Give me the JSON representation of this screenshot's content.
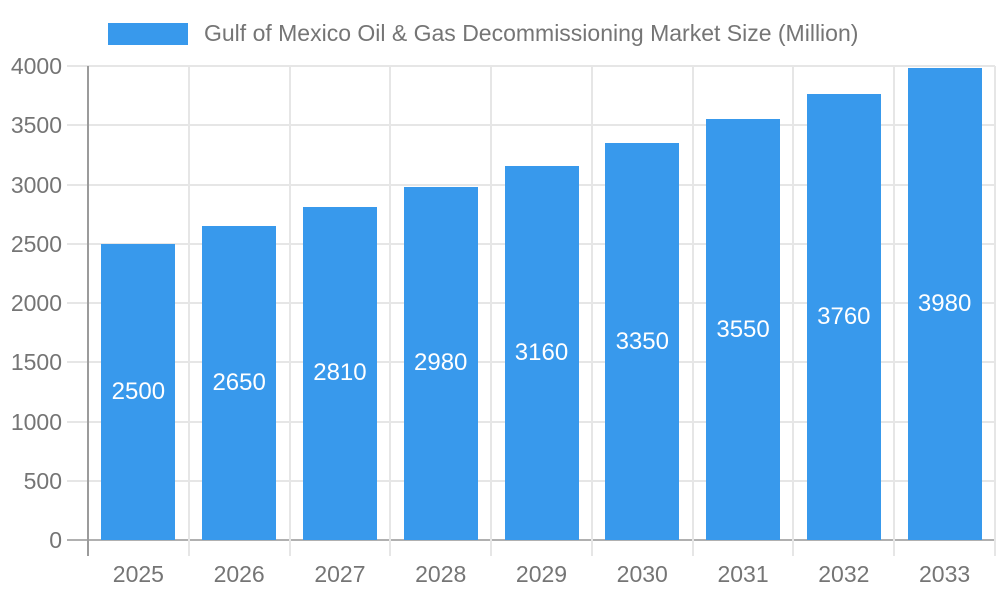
{
  "legend": {
    "label": "Gulf of Mexico Oil & Gas Decommissioning Market Size (Million)",
    "swatch_color": "#3899EC"
  },
  "chart_data": {
    "type": "bar",
    "title": "Gulf of Mexico Oil & Gas Decommissioning Market Size (Million)",
    "categories": [
      "2025",
      "2026",
      "2027",
      "2028",
      "2029",
      "2030",
      "2031",
      "2032",
      "2033"
    ],
    "series": [
      {
        "name": "Gulf of Mexico Oil & Gas Decommissioning Market Size (Million)",
        "values": [
          2500,
          2650,
          2810,
          2980,
          3160,
          3350,
          3550,
          3760,
          3980
        ]
      }
    ],
    "xlabel": "",
    "ylabel": "",
    "ylim": [
      0,
      4000
    ],
    "ytick_step": 500,
    "ytick_labels": [
      "0",
      "500",
      "1000",
      "1500",
      "2000",
      "2500",
      "3000",
      "3500",
      "4000"
    ],
    "grid": true,
    "legend_position": "top",
    "bar_label_position": "inside-center",
    "colors": {
      "bar": "#3899EC",
      "bar_label": "#ffffff",
      "axis_text": "#757575",
      "gridline": "#e6e6e6",
      "baseline": "#b0b0b0",
      "axis_line": "#9b9b9b",
      "background": "#ffffff"
    }
  }
}
